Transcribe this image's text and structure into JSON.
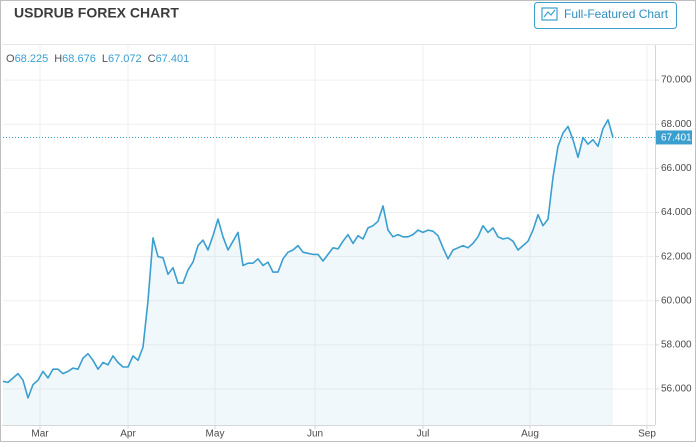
{
  "chart_data": {
    "type": "area-line",
    "title": "USDRUB FOREX CHART",
    "button": "Full-Featured Chart",
    "ohlc": [
      {
        "label": "O",
        "value": 68.225
      },
      {
        "label": "H",
        "value": 68.676
      },
      {
        "label": "L",
        "value": 67.072
      },
      {
        "label": "C",
        "value": 67.401
      }
    ],
    "color": "#3a9fcf",
    "grid": true,
    "ylim": [
      54.37,
      71.59
    ],
    "yticks": [
      {
        "value": 56,
        "label": "56.000"
      },
      {
        "value": 58,
        "label": "58.000"
      },
      {
        "value": 60,
        "label": "60.000"
      },
      {
        "value": 62,
        "label": "62.000"
      },
      {
        "value": 64,
        "label": "64.000"
      },
      {
        "value": 66,
        "label": "66.000"
      },
      {
        "value": 68,
        "label": "68.000"
      },
      {
        "value": 70,
        "label": "70.000"
      }
    ],
    "xlim": [
      -0.6,
      130.4
    ],
    "xticks": [
      {
        "value": 7.4,
        "label": "Mar"
      },
      {
        "value": 25,
        "label": "Apr"
      },
      {
        "value": 42.4,
        "label": "May"
      },
      {
        "value": 62.4,
        "label": "Jun"
      },
      {
        "value": 84,
        "label": "Jul"
      },
      {
        "value": 105.4,
        "label": "Aug"
      },
      {
        "value": 128.8,
        "label": "Sep"
      }
    ],
    "values": [
      56.35,
      56.3,
      56.5,
      56.7,
      56.4,
      55.6,
      56.2,
      56.4,
      56.8,
      56.5,
      56.9,
      56.9,
      56.7,
      56.8,
      56.95,
      56.9,
      57.4,
      57.6,
      57.3,
      56.9,
      57.2,
      57.1,
      57.5,
      57.2,
      57.0,
      57.0,
      57.5,
      57.3,
      57.9,
      60.0,
      62.85,
      62.0,
      61.95,
      61.2,
      61.5,
      60.8,
      60.8,
      61.4,
      61.75,
      62.5,
      62.75,
      62.3,
      62.95,
      63.7,
      62.9,
      62.3,
      62.7,
      63.1,
      61.6,
      61.7,
      61.7,
      61.9,
      61.6,
      61.75,
      61.3,
      61.3,
      61.9,
      62.2,
      62.3,
      62.5,
      62.2,
      62.15,
      62.1,
      62.1,
      61.8,
      62.1,
      62.4,
      62.35,
      62.7,
      63.0,
      62.6,
      62.95,
      62.8,
      63.3,
      63.4,
      63.6,
      64.3,
      63.2,
      62.9,
      63.0,
      62.9,
      62.9,
      63.0,
      63.2,
      63.1,
      63.2,
      63.15,
      62.95,
      62.4,
      61.9,
      62.3,
      62.4,
      62.5,
      62.4,
      62.6,
      62.9,
      63.4,
      63.1,
      63.3,
      62.9,
      62.8,
      62.85,
      62.7,
      62.3,
      62.5,
      62.7,
      63.2,
      63.9,
      63.4,
      63.7,
      65.6,
      67.0,
      67.6,
      67.9,
      67.3,
      66.5,
      67.4,
      67.1,
      67.3,
      67.0,
      67.8,
      68.2,
      67.401
    ]
  }
}
